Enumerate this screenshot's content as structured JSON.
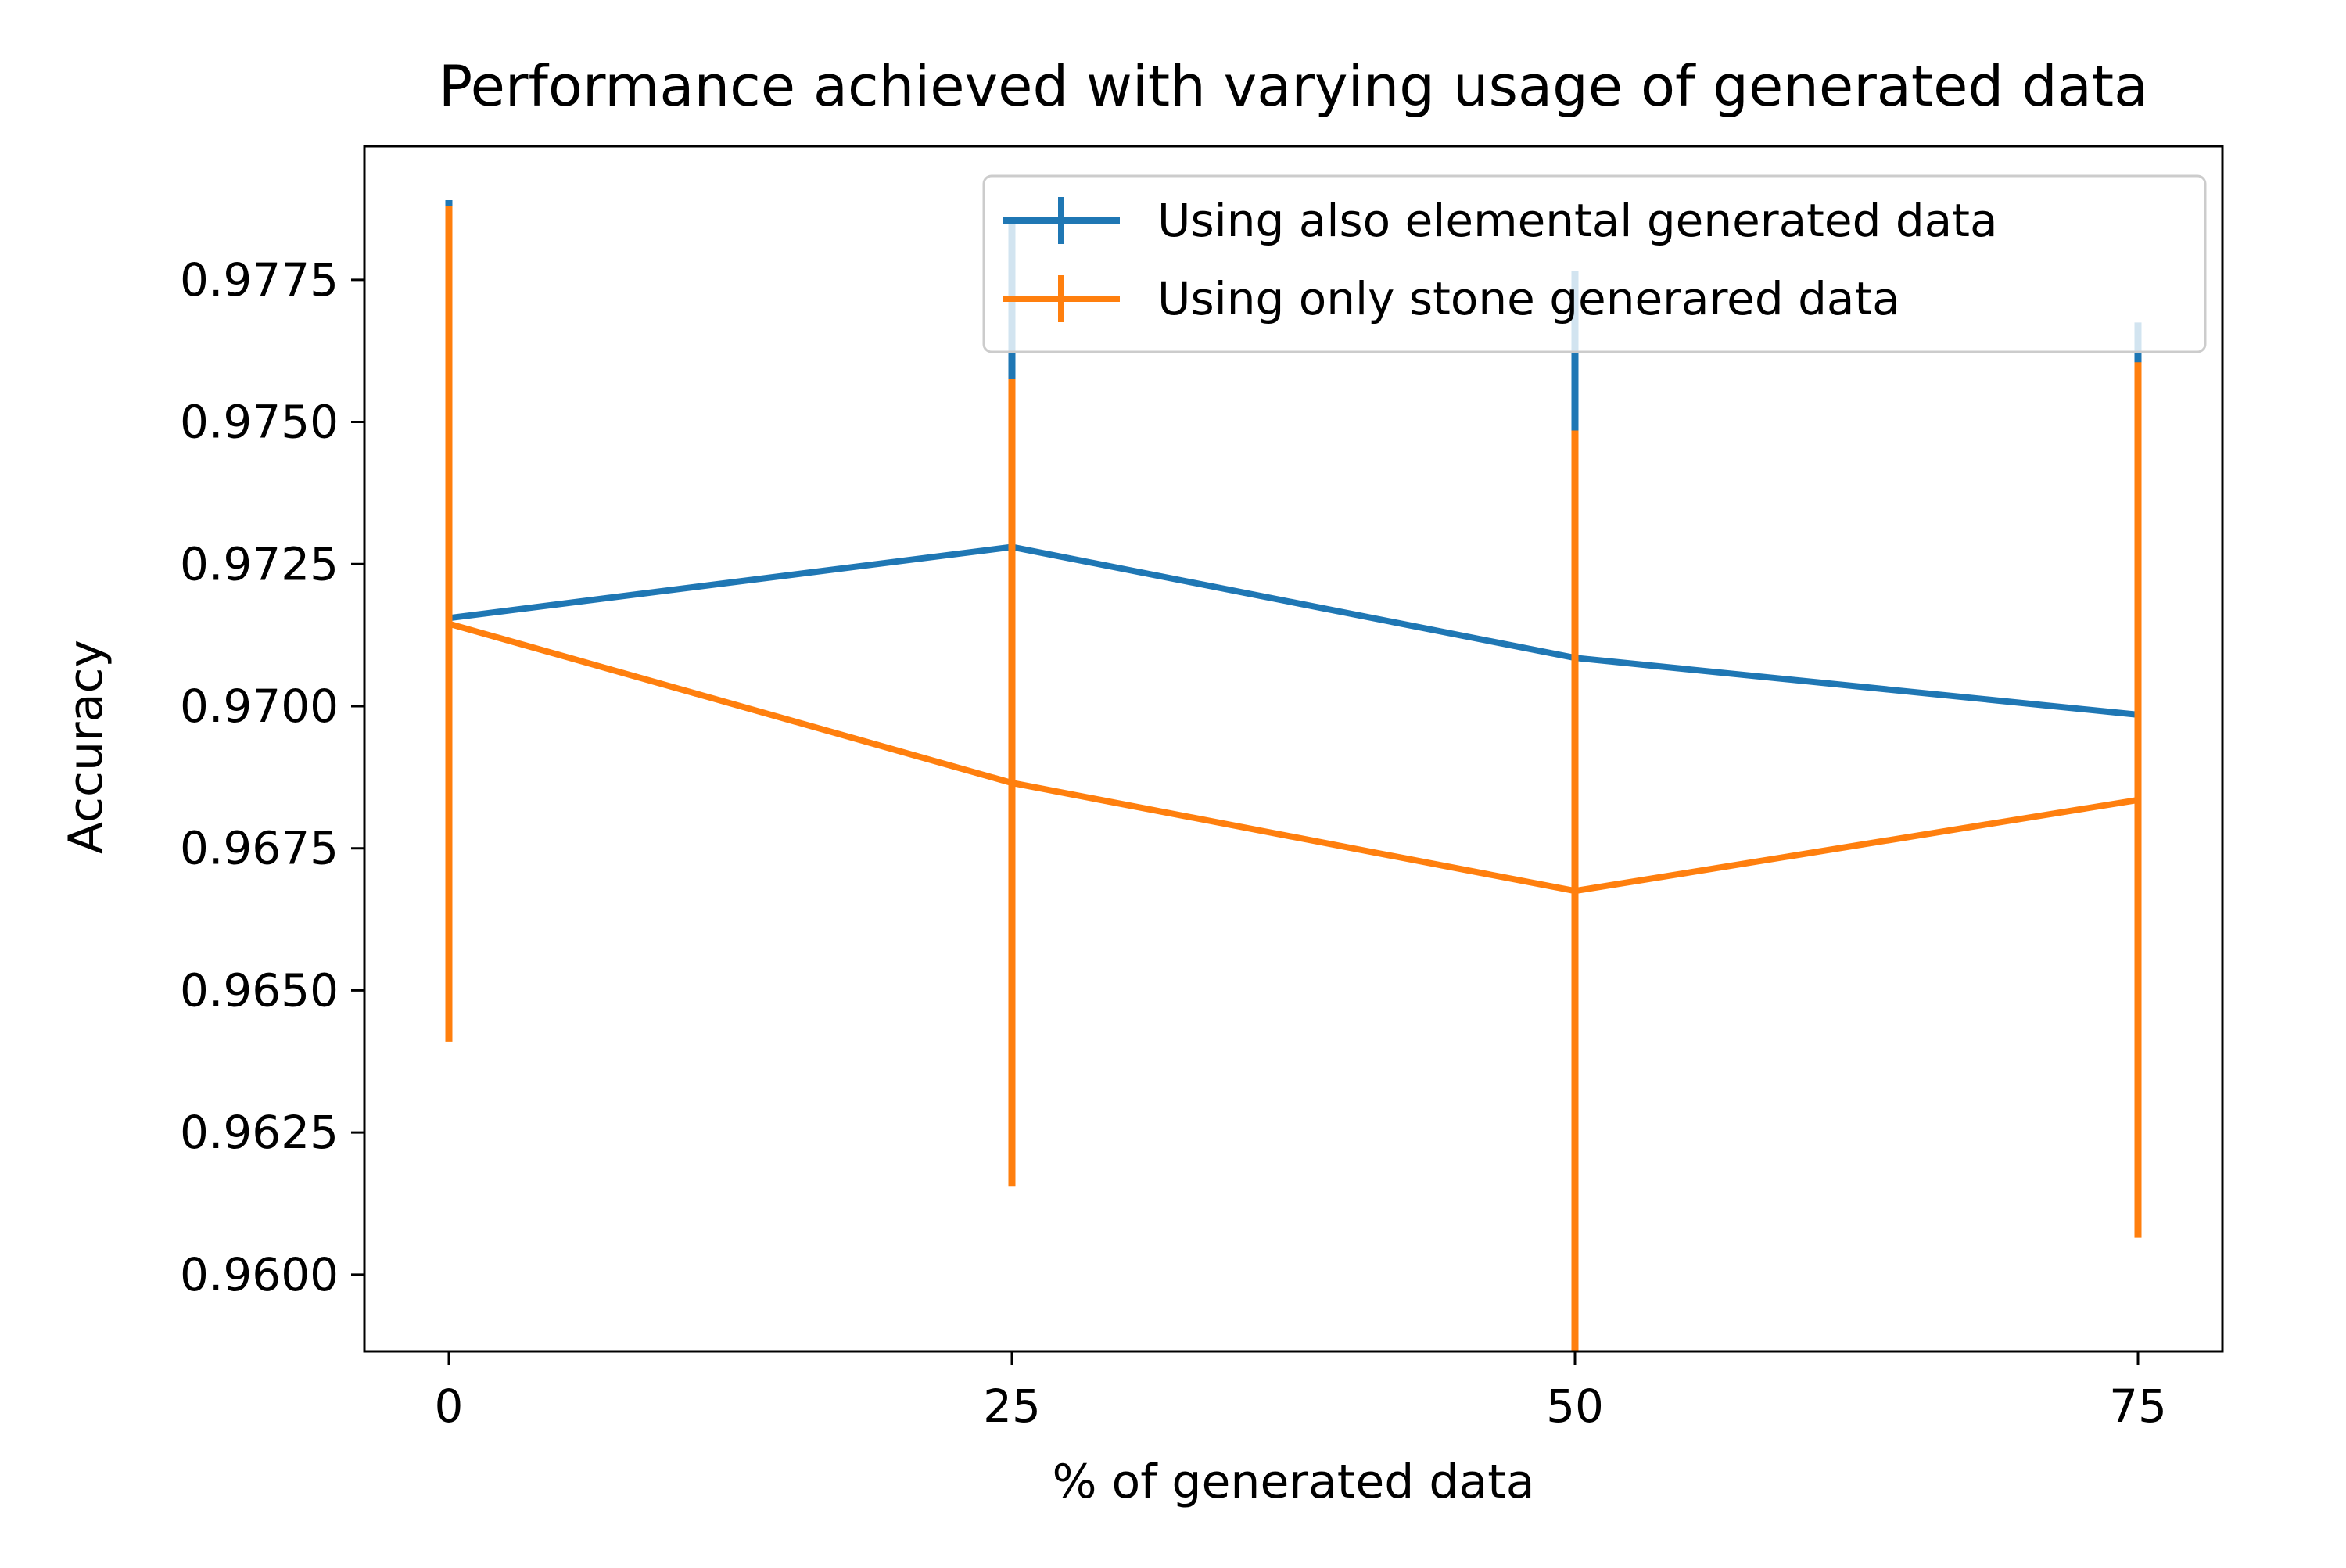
{
  "chart_data": {
    "type": "line",
    "title": "Performance achieved with varying usage of generated data",
    "xlabel": "% of generated data",
    "ylabel": "Accuracy",
    "x": [
      0,
      25,
      50,
      75
    ],
    "xticks": [
      0,
      25,
      50,
      75
    ],
    "xtick_labels": [
      "0",
      "25",
      "50",
      "75"
    ],
    "yticks": [
      0.96,
      0.9625,
      0.965,
      0.9675,
      0.97,
      0.9725,
      0.975,
      0.9775
    ],
    "ytick_labels": [
      "0.9600",
      "0.9625",
      "0.9650",
      "0.9675",
      "0.9700",
      "0.9725",
      "0.9750",
      "0.9775"
    ],
    "xlim": [
      -3.75,
      78.75
    ],
    "ylim": [
      0.95865,
      0.97985
    ],
    "grid": false,
    "legend_position": "upper right",
    "series": [
      {
        "name": "Using also elemental generated data",
        "color": "#1f77b4",
        "values": [
          0.97155,
          0.9728,
          0.97085,
          0.96985
        ],
        "error": [
          0.00735,
          0.0057,
          0.0068,
          0.0069
        ]
      },
      {
        "name": "Using only stone generared data",
        "color": "#ff7f0e",
        "values": [
          0.97145,
          0.96865,
          0.96675,
          0.96835
        ],
        "error": [
          0.00735,
          0.0071,
          0.0081,
          0.0077
        ]
      }
    ]
  }
}
